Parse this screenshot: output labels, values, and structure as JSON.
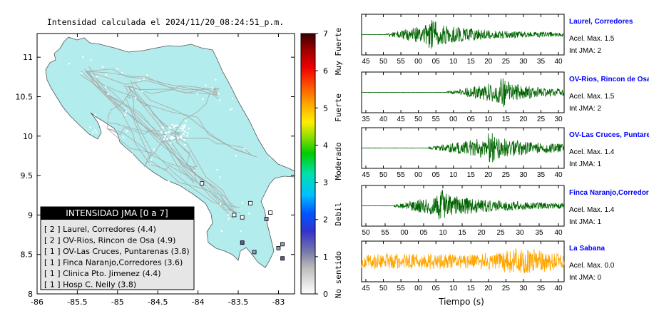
{
  "map": {
    "title": "Intensidad calculada el 2024/11/20_08:24:51_p.m.",
    "x_ticks": [
      "-86",
      "-85.5",
      "-85",
      "-84.5",
      "-84",
      "-83.5",
      "-83"
    ],
    "y_ticks": [
      "8",
      "8.5",
      "9",
      "9.5",
      "10",
      "10.5",
      "11"
    ],
    "xlim": [
      -86,
      -82.8
    ],
    "ylim": [
      8,
      11.3
    ],
    "land_color": "#b3ecec"
  },
  "legend": {
    "title": "INTENSIDAD JMA [0 a 7]",
    "items": [
      "[ 2 ]  Laurel, Corredores (4.4)",
      "[ 2 ]  OV-Rios, Rincon de Osa (4.9)",
      "[ 1 ]  OV-Las Cruces, Puntarenas (3.8)",
      "[ 1 ]  Finca Naranjo,Corredores (3.6)",
      "[ 1 ]  Clinica Pto. Jimenez (4.4)",
      "[ 1 ]  Hosp C. Neily (3.8)"
    ]
  },
  "colorbar": {
    "ticks": [
      "0",
      "1",
      "2",
      "3",
      "4",
      "5",
      "6",
      "7"
    ],
    "labels": [
      "No sentido",
      "Debil",
      "Moderado",
      "Fuerte",
      "Muy Fuerte"
    ]
  },
  "chart_data": [
    {
      "type": "scatter",
      "title": "Intensidad calculada el 2024/11/20_08:24:51_p.m.",
      "xlim": [
        -86,
        -82.8
      ],
      "ylim": [
        8,
        11.3
      ],
      "series": [
        {
          "name": "Laurel, Corredores",
          "x": [
            -82.95
          ],
          "y": [
            8.45
          ],
          "intensity": 2
        },
        {
          "name": "OV-Rios, Rincon de Osa",
          "x": [
            -83.45
          ],
          "y": [
            8.65
          ],
          "intensity": 2
        },
        {
          "name": "OV-Las Cruces, Puntarenas",
          "x": [
            -83.15
          ],
          "y": [
            8.95
          ],
          "intensity": 1
        },
        {
          "name": "Finca Naranjo,Corredores",
          "x": [
            -82.95
          ],
          "y": [
            8.63
          ],
          "intensity": 1
        },
        {
          "name": "Clinica Pto. Jimenez",
          "x": [
            -83.3
          ],
          "y": [
            8.53
          ],
          "intensity": 1
        },
        {
          "name": "Hosp C. Neily",
          "x": [
            -83.0
          ],
          "y": [
            8.58
          ],
          "intensity": 1
        }
      ]
    },
    {
      "type": "line",
      "xlabel": "Tiempo (s)",
      "traces": [
        {
          "station": "Laurel, Corredores",
          "accel": "Acel. Max. 1.5",
          "int": "Int JMA: 2",
          "ticks": [
            "45",
            "50",
            "55",
            "00",
            "05",
            "10",
            "15",
            "20",
            "25",
            "30",
            "35",
            "40"
          ],
          "color": "#006400",
          "onset": 0.12,
          "peak": 0.33,
          "decay": 0.75,
          "amp": 0.95
        },
        {
          "station": "OV-Rios, Rincon de Osa",
          "accel": "Acel. Max. 1.5",
          "int": "Int JMA: 2",
          "ticks": [
            "35",
            "40",
            "45",
            "50",
            "55",
            "00",
            "05",
            "10",
            "15",
            "20",
            "25",
            "30"
          ],
          "color": "#006400",
          "onset": 0.42,
          "peak": 0.68,
          "decay": 0.55,
          "amp": 0.95
        },
        {
          "station": "OV-Las Cruces, Puntarenas",
          "accel": "Acel. Max. 1.4",
          "int": "Int JMA: 1",
          "ticks": [
            "45",
            "50",
            "55",
            "00",
            "05",
            "10",
            "15",
            "20",
            "25",
            "30",
            "35",
            "40"
          ],
          "color": "#006400",
          "onset": 0.33,
          "peak": 0.62,
          "decay": 0.85,
          "amp": 0.95
        },
        {
          "station": "Finca Naranjo,Corredores",
          "accel": "Acel. Max. 1.4",
          "int": "Int JMA: 1",
          "ticks": [
            "50",
            "55",
            "00",
            "05",
            "10",
            "15",
            "20",
            "25",
            "30",
            "35",
            "40"
          ],
          "color": "#006400",
          "onset": 0.16,
          "peak": 0.38,
          "decay": 0.9,
          "amp": 0.95
        },
        {
          "station": "La Sabana",
          "accel": "Acel. Max. 0.0",
          "int": "Int JMA: 0",
          "ticks": [
            "45",
            "50",
            "55",
            "00",
            "05",
            "10",
            "15",
            "20",
            "25",
            "30",
            "35",
            "40"
          ],
          "color": "#ffa500",
          "onset": 0.0,
          "peak": 0.8,
          "decay": 2.0,
          "amp": 0.95,
          "noise": true
        }
      ]
    }
  ]
}
